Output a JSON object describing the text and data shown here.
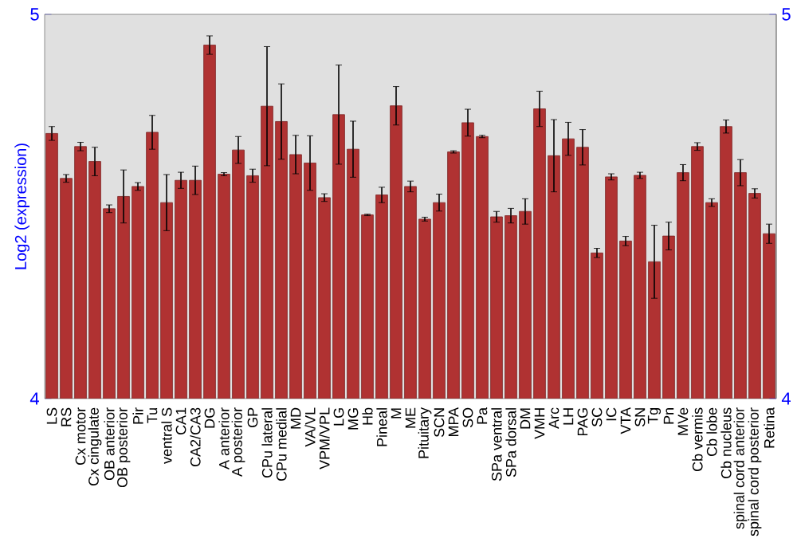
{
  "chart_data": {
    "type": "bar",
    "ylabel": "Log2 (expression)",
    "categories": [
      "LS",
      "RS",
      "Cx motor",
      "Cx cingulate",
      "OB anterior",
      "OB posterior",
      "Pir",
      "Tu",
      "ventral S",
      "CA1",
      "CA2/CA3",
      "DG",
      "A anterior",
      "A posterior",
      "GP",
      "CPu lateral",
      "CPu medial",
      "MD",
      "VA/VL",
      "VPM/VPL",
      "LG",
      "MG",
      "Hb",
      "Pineal",
      "M",
      "ME",
      "Pituitary",
      "SCN",
      "MPA",
      "SO",
      "Pa",
      "SPa ventral",
      "SPa dorsal",
      "DM",
      "VMH",
      "Arc",
      "LH",
      "PAG",
      "SC",
      "IC",
      "VTA",
      "SN",
      "Tg",
      "Pn",
      "MVe",
      "Cb vermis",
      "Cb lobe",
      "Cb nucleus",
      "spinal cord anterior",
      "spinal cord posterior",
      "Retina"
    ],
    "values": [
      4.69,
      4.573,
      4.656,
      4.617,
      4.494,
      4.526,
      4.552,
      4.693,
      4.51,
      4.568,
      4.568,
      4.92,
      4.584,
      4.647,
      4.58,
      4.761,
      4.721,
      4.635,
      4.613,
      4.523,
      4.739,
      4.649,
      4.478,
      4.53,
      4.762,
      4.552,
      4.467,
      4.51,
      4.642,
      4.718,
      4.682,
      4.473,
      4.476,
      4.487,
      4.754,
      4.632,
      4.676,
      4.654,
      4.379,
      4.577,
      4.41,
      4.581,
      4.356,
      4.423,
      4.588,
      4.656,
      4.51,
      4.708,
      4.588,
      4.534,
      4.429
    ],
    "errors": [
      0.018,
      0.01,
      0.011,
      0.037,
      0.01,
      0.069,
      0.01,
      0.044,
      0.073,
      0.021,
      0.037,
      0.024,
      0.004,
      0.035,
      0.017,
      0.155,
      0.098,
      0.05,
      0.071,
      0.01,
      0.129,
      0.073,
      0.002,
      0.02,
      0.05,
      0.014,
      0.005,
      0.022,
      0.003,
      0.035,
      0.003,
      0.014,
      0.019,
      0.033,
      0.046,
      0.094,
      0.043,
      0.046,
      0.012,
      0.008,
      0.012,
      0.008,
      0.095,
      0.036,
      0.021,
      0.01,
      0.01,
      0.017,
      0.034,
      0.012,
      0.025
    ],
    "color": "#b03232",
    "ylim": [
      4,
      5
    ],
    "yticks": [
      4,
      5
    ],
    "y2lim": [
      4,
      5
    ],
    "y2ticks": [
      4,
      5
    ],
    "grid": false
  }
}
